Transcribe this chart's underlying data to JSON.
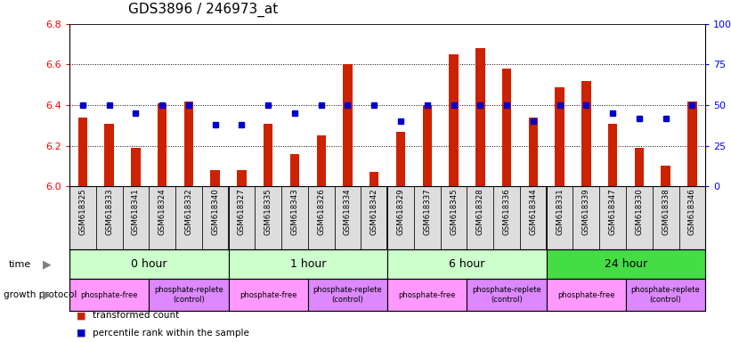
{
  "title": "GDS3896 / 246973_at",
  "samples": [
    "GSM618325",
    "GSM618333",
    "GSM618341",
    "GSM618324",
    "GSM618332",
    "GSM618340",
    "GSM618327",
    "GSM618335",
    "GSM618343",
    "GSM618326",
    "GSM618334",
    "GSM618342",
    "GSM618329",
    "GSM618337",
    "GSM618345",
    "GSM618328",
    "GSM618336",
    "GSM618344",
    "GSM618331",
    "GSM618339",
    "GSM618347",
    "GSM618330",
    "GSM618338",
    "GSM618346"
  ],
  "transformed_counts": [
    6.34,
    6.31,
    6.19,
    6.41,
    6.42,
    6.08,
    6.08,
    6.31,
    6.16,
    6.25,
    6.6,
    6.07,
    6.27,
    6.4,
    6.65,
    6.68,
    6.58,
    6.34,
    6.49,
    6.52,
    6.31,
    6.19,
    6.1,
    6.42
  ],
  "percentile_ranks": [
    50,
    50,
    45,
    50,
    50,
    38,
    38,
    50,
    45,
    50,
    50,
    50,
    40,
    50,
    50,
    50,
    50,
    40,
    50,
    50,
    45,
    42,
    42,
    50
  ],
  "time_groups": [
    {
      "label": "0 hour",
      "start": 0,
      "end": 6,
      "color": "#ccffcc"
    },
    {
      "label": "1 hour",
      "start": 6,
      "end": 12,
      "color": "#ccffcc"
    },
    {
      "label": "6 hour",
      "start": 12,
      "end": 18,
      "color": "#ccffcc"
    },
    {
      "label": "24 hour",
      "start": 18,
      "end": 24,
      "color": "#44dd44"
    }
  ],
  "protocol_groups": [
    {
      "label": "phosphate-free",
      "start": 0,
      "end": 3
    },
    {
      "label": "phosphate-replete\n(control)",
      "start": 3,
      "end": 6
    },
    {
      "label": "phosphate-free",
      "start": 6,
      "end": 9
    },
    {
      "label": "phosphate-replete\n(control)",
      "start": 9,
      "end": 12
    },
    {
      "label": "phosphate-free",
      "start": 12,
      "end": 15
    },
    {
      "label": "phosphate-replete\n(control)",
      "start": 15,
      "end": 18
    },
    {
      "label": "phosphate-free",
      "start": 18,
      "end": 21
    },
    {
      "label": "phosphate-replete\n(control)",
      "start": 21,
      "end": 24
    }
  ],
  "prot_color_free": "#ff99ff",
  "prot_color_replete": "#dd88ff",
  "ylim": [
    6.0,
    6.8
  ],
  "yticks_left": [
    6.0,
    6.2,
    6.4,
    6.6,
    6.8
  ],
  "yticks_right": [
    0,
    25,
    50,
    75,
    100
  ],
  "right_ylabels": [
    "0",
    "25",
    "50",
    "75",
    "100%"
  ],
  "bar_color": "#cc2200",
  "dot_color": "#0000cc",
  "xtick_bg": "#dddddd",
  "grid_lines": [
    6.2,
    6.4,
    6.6
  ]
}
